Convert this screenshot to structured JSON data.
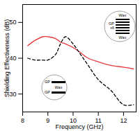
{
  "chart_data": {
    "type": "line",
    "xlabel": "Frequency (GHz)",
    "ylabel": "Shielding Effectiveness (dB)",
    "x": [
      8.2,
      8.5,
      8.8,
      9.0,
      9.3,
      9.5,
      9.7,
      10.0,
      10.3,
      10.6,
      11.0,
      11.5,
      12.0,
      12.4
    ],
    "series": [
      {
        "color": "#e8393b",
        "line_style": "solid",
        "values": [
          43.5,
          45,
          46,
          46,
          45.5,
          44.5,
          44,
          43,
          41.5,
          40,
          39,
          38,
          37.5,
          37
        ]
      },
      {
        "color": "#000000",
        "line_style": "dashed",
        "values": [
          40,
          39.5,
          39.5,
          39.5,
          41,
          44,
          46,
          44,
          41,
          38,
          34,
          31,
          27,
          27
        ]
      }
    ],
    "xlim": [
      8,
      12.5
    ],
    "xticks": [
      8,
      9,
      10,
      11,
      12
    ],
    "ylim": [
      25,
      55
    ],
    "yticks": [
      30,
      40,
      50
    ],
    "grid": false,
    "annotations": [
      [
        "Wax",
        "GP x6",
        "Wax"
      ],
      [
        "GP",
        "Wax",
        "GP"
      ]
    ]
  }
}
